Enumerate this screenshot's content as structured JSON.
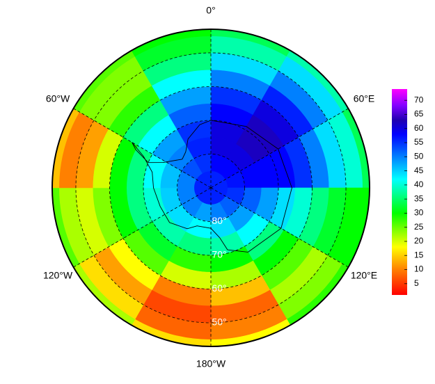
{
  "map": {
    "type": "polar-heatmap",
    "lon_labels": [
      {
        "value": 0,
        "label": "0°"
      },
      {
        "value": 60,
        "label": "60°E"
      },
      {
        "value": 120,
        "label": "120°E"
      },
      {
        "value": 180,
        "label": "180°W"
      },
      {
        "value": -120,
        "label": "120°W"
      },
      {
        "value": -60,
        "label": "60°W"
      }
    ],
    "lat_labels": [
      {
        "value": 80,
        "label": "80°"
      },
      {
        "value": 70,
        "label": "70°"
      },
      {
        "value": 60,
        "label": "60°"
      },
      {
        "value": 50,
        "label": "50°"
      }
    ],
    "lat_edges": [
      90,
      85,
      80,
      75,
      70,
      65,
      60,
      55,
      50,
      45,
      43
    ],
    "lon_edges": [
      0,
      30,
      60,
      90,
      120,
      150,
      180,
      210,
      240,
      270,
      300,
      330,
      360
    ],
    "values": [
      [
        56,
        56,
        56,
        56,
        56,
        56,
        56,
        56,
        56,
        56,
        56,
        56
      ],
      [
        58,
        58,
        57,
        55,
        52,
        50,
        48,
        50,
        50,
        50,
        53,
        55
      ],
      [
        60,
        60,
        58,
        52,
        48,
        44,
        42,
        44,
        45,
        46,
        50,
        56
      ],
      [
        60,
        62,
        58,
        48,
        42,
        38,
        36,
        38,
        40,
        42,
        48,
        55
      ],
      [
        58,
        62,
        58,
        44,
        36,
        30,
        28,
        32,
        36,
        36,
        42,
        52
      ],
      [
        55,
        60,
        55,
        40,
        30,
        22,
        20,
        26,
        30,
        30,
        36,
        48
      ],
      [
        50,
        56,
        50,
        36,
        26,
        14,
        10,
        18,
        24,
        20,
        28,
        42
      ],
      [
        44,
        50,
        44,
        32,
        22,
        8,
        6,
        12,
        20,
        12,
        24,
        36
      ],
      [
        38,
        44,
        40,
        30,
        24,
        10,
        8,
        16,
        22,
        10,
        24,
        32
      ],
      [
        34,
        38,
        34,
        30,
        28,
        18,
        16,
        22,
        26,
        14,
        26,
        30
      ]
    ],
    "colorbar": {
      "clim": [
        1,
        74
      ],
      "ticks": [
        5,
        10,
        15,
        20,
        25,
        30,
        35,
        40,
        45,
        50,
        55,
        60,
        65,
        70
      ],
      "colormap": [
        {
          "value": 1,
          "color": "#ff0000"
        },
        {
          "value": 10,
          "color": "#ff8000"
        },
        {
          "value": 18,
          "color": "#ffff00"
        },
        {
          "value": 30,
          "color": "#00ff00"
        },
        {
          "value": 42,
          "color": "#00ffff"
        },
        {
          "value": 50,
          "color": "#0080ff"
        },
        {
          "value": 58,
          "color": "#0000ff"
        },
        {
          "value": 63,
          "color": "#2000b0"
        },
        {
          "value": 68,
          "color": "#8000ff"
        },
        {
          "value": 74,
          "color": "#ff00ff"
        }
      ]
    }
  }
}
